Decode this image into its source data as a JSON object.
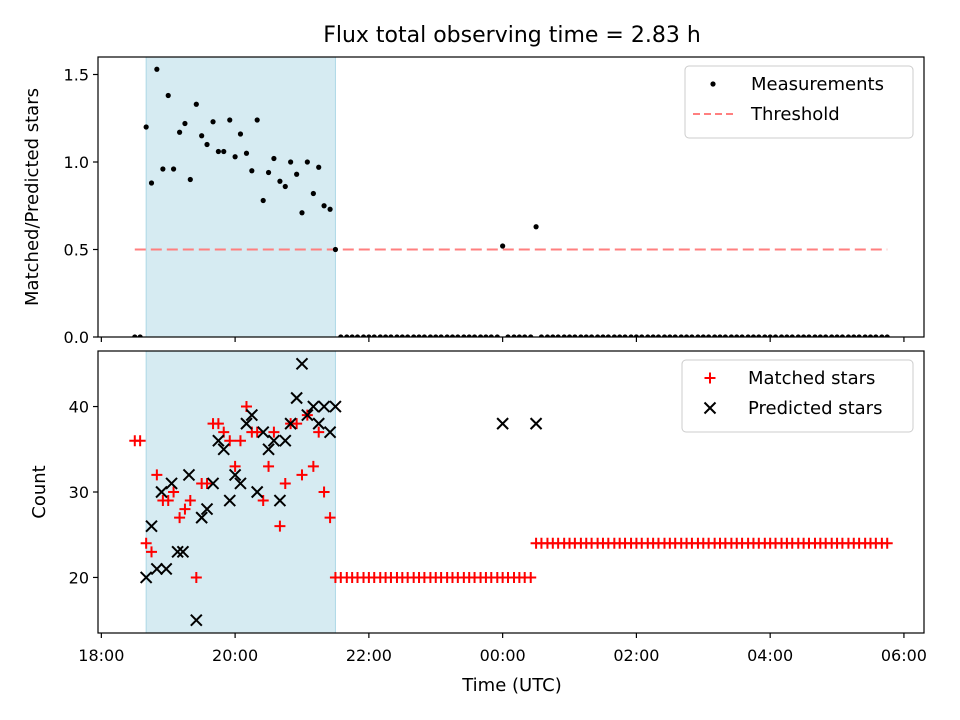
{
  "chart_data": {
    "title": "Flux total observing time = 2.83 h",
    "xlabel": "Time (UTC)",
    "x_unit": "hours since 18:00 UTC",
    "xlim": [
      -0.05,
      12.3
    ],
    "x_ticks": [
      {
        "value": 0,
        "label": "18:00"
      },
      {
        "value": 2,
        "label": "20:00"
      },
      {
        "value": 4,
        "label": "22:00"
      },
      {
        "value": 6,
        "label": "00:00"
      },
      {
        "value": 8,
        "label": "02:00"
      },
      {
        "value": 10,
        "label": "04:00"
      },
      {
        "value": 12,
        "label": "06:00"
      }
    ],
    "observing_window": {
      "start": 0.67,
      "end": 3.5,
      "color": "#add8e6"
    },
    "panels": [
      {
        "type": "scatter",
        "ylabel": "Matched/Predicted stars",
        "ylim": [
          0,
          1.6
        ],
        "y_ticks": [
          {
            "value": 0,
            "label": "0.0"
          },
          {
            "value": 0.5,
            "label": "0.5"
          },
          {
            "value": 1.0,
            "label": "1.0"
          },
          {
            "value": 1.5,
            "label": "1.5"
          }
        ],
        "threshold": {
          "name": "Threshold",
          "value": 0.5,
          "x_start": 0.5,
          "x_end": 11.75,
          "color": "#ff7f7f"
        },
        "legend_position": "upper right",
        "series": [
          {
            "name": "Measurements",
            "marker": "dot",
            "color": "#000000",
            "x": [
              0.5,
              0.58,
              0.67,
              0.75,
              0.83,
              0.92,
              1.0,
              1.08,
              1.17,
              1.25,
              1.33,
              1.42,
              1.5,
              1.58,
              1.67,
              1.75,
              1.83,
              1.92,
              2.0,
              2.08,
              2.17,
              2.25,
              2.33,
              2.42,
              2.5,
              2.58,
              2.67,
              2.75,
              2.83,
              2.92,
              3.0,
              3.08,
              3.17,
              3.25,
              3.33,
              3.42,
              3.5,
              3.58,
              3.67,
              3.75,
              3.83,
              3.92,
              4.0,
              4.08,
              4.17,
              4.25,
              4.33,
              4.42,
              4.5,
              4.58,
              4.67,
              4.75,
              4.83,
              4.92,
              5.0,
              5.08,
              5.17,
              5.25,
              5.33,
              5.42,
              5.5,
              5.58,
              5.67,
              5.75,
              5.83,
              5.92,
              6.0,
              6.08,
              6.17,
              6.25,
              6.33,
              6.42,
              6.5,
              6.58,
              6.67,
              6.75,
              6.83,
              6.92,
              7.0,
              7.08,
              7.17,
              7.25,
              7.33,
              7.42,
              7.5,
              7.58,
              7.67,
              7.75,
              7.83,
              7.92,
              8.0,
              8.08,
              8.17,
              8.25,
              8.33,
              8.42,
              8.5,
              8.58,
              8.67,
              8.75,
              8.83,
              8.92,
              9.0,
              9.08,
              9.17,
              9.25,
              9.33,
              9.42,
              9.5,
              9.58,
              9.67,
              9.75,
              9.83,
              9.92,
              10.0,
              10.08,
              10.17,
              10.25,
              10.33,
              10.42,
              10.5,
              10.58,
              10.67,
              10.75,
              10.83,
              10.92,
              11.0,
              11.08,
              11.17,
              11.25,
              11.33,
              11.42,
              11.5,
              11.58,
              11.67,
              11.75
            ],
            "y": [
              0,
              0,
              1.2,
              0.88,
              1.53,
              0.96,
              1.38,
              0.96,
              1.17,
              1.22,
              0.9,
              1.33,
              1.15,
              1.1,
              1.23,
              1.06,
              1.06,
              1.24,
              1.03,
              1.16,
              1.05,
              0.95,
              1.24,
              0.78,
              0.94,
              1.02,
              0.89,
              0.86,
              1.0,
              0.93,
              0.71,
              1.0,
              0.82,
              0.97,
              0.75,
              0.73,
              0.5,
              0,
              0,
              0,
              0,
              0,
              0,
              0,
              0,
              0,
              0,
              0,
              0,
              0,
              0,
              0,
              0,
              0,
              0,
              0,
              0,
              0,
              0,
              0,
              0,
              0,
              0,
              0,
              0,
              0,
              0.52,
              0,
              0,
              0,
              0,
              0,
              0.63,
              0,
              0,
              0,
              0,
              0,
              0,
              0,
              0,
              0,
              0,
              0,
              0,
              0,
              0,
              0,
              0,
              0,
              0,
              0,
              0,
              0,
              0,
              0,
              0,
              0,
              0,
              0,
              0,
              0,
              0,
              0,
              0,
              0,
              0,
              0,
              0,
              0,
              0,
              0,
              0,
              0,
              0,
              0,
              0,
              0,
              0,
              0,
              0,
              0,
              0,
              0,
              0,
              0,
              0,
              0,
              0,
              0,
              0,
              0,
              0,
              0,
              0,
              0
            ]
          }
        ]
      },
      {
        "type": "scatter",
        "ylabel": "Count",
        "ylim": [
          13.5,
          46.5
        ],
        "y_ticks": [
          {
            "value": 20,
            "label": "20"
          },
          {
            "value": 30,
            "label": "30"
          },
          {
            "value": 40,
            "label": "40"
          }
        ],
        "legend_position": "upper right",
        "series": [
          {
            "name": "Matched stars",
            "marker": "plus",
            "color": "#ff0000",
            "x": [
              0.5,
              0.58,
              0.67,
              0.75,
              0.83,
              0.92,
              1.0,
              1.08,
              1.17,
              1.25,
              1.33,
              1.42,
              1.5,
              1.58,
              1.67,
              1.75,
              1.83,
              1.92,
              2.0,
              2.08,
              2.17,
              2.25,
              2.33,
              2.42,
              2.5,
              2.58,
              2.67,
              2.75,
              2.83,
              2.92,
              3.0,
              3.08,
              3.17,
              3.25,
              3.33,
              3.42,
              3.5,
              3.58,
              3.67,
              3.75,
              3.83,
              3.92,
              4.0,
              4.08,
              4.17,
              4.25,
              4.33,
              4.42,
              4.5,
              4.58,
              4.67,
              4.75,
              4.83,
              4.92,
              5.0,
              5.08,
              5.17,
              5.25,
              5.33,
              5.42,
              5.5,
              5.58,
              5.67,
              5.75,
              5.83,
              5.92,
              6.0,
              6.08,
              6.17,
              6.25,
              6.33,
              6.42,
              6.5,
              6.58,
              6.67,
              6.75,
              6.83,
              6.92,
              7.0,
              7.08,
              7.17,
              7.25,
              7.33,
              7.42,
              7.5,
              7.58,
              7.67,
              7.75,
              7.83,
              7.92,
              8.0,
              8.08,
              8.17,
              8.25,
              8.33,
              8.42,
              8.5,
              8.58,
              8.67,
              8.75,
              8.83,
              8.92,
              9.0,
              9.08,
              9.17,
              9.25,
              9.33,
              9.42,
              9.5,
              9.58,
              9.67,
              9.75,
              9.83,
              9.92,
              10.0,
              10.08,
              10.17,
              10.25,
              10.33,
              10.42,
              10.5,
              10.58,
              10.67,
              10.75,
              10.83,
              10.92,
              11.0,
              11.08,
              11.17,
              11.25,
              11.33,
              11.42,
              11.5,
              11.58,
              11.67,
              11.75
            ],
            "y": [
              36,
              36,
              24,
              23,
              32,
              29,
              29,
              30,
              27,
              28,
              29,
              20,
              31,
              31,
              38,
              38,
              37,
              36,
              33,
              36,
              40,
              37,
              37,
              29,
              33,
              37,
              26,
              31,
              38,
              38,
              32,
              39,
              33,
              37,
              30,
              27,
              20,
              20,
              20,
              20,
              20,
              20,
              20,
              20,
              20,
              20,
              20,
              20,
              20,
              20,
              20,
              20,
              20,
              20,
              20,
              20,
              20,
              20,
              20,
              20,
              20,
              20,
              20,
              20,
              20,
              20,
              20,
              20,
              20,
              20,
              20,
              20,
              24,
              24,
              24,
              24,
              24,
              24,
              24,
              24,
              24,
              24,
              24,
              24,
              24,
              24,
              24,
              24,
              24,
              24,
              24,
              24,
              24,
              24,
              24,
              24,
              24,
              24,
              24,
              24,
              24,
              24,
              24,
              24,
              24,
              24,
              24,
              24,
              24,
              24,
              24,
              24,
              24,
              24,
              24,
              24,
              24,
              24,
              24,
              24,
              24,
              24,
              24,
              24,
              24,
              24,
              24,
              24,
              24,
              24,
              24,
              24,
              24,
              24,
              24,
              24
            ]
          },
          {
            "name": "Predicted stars",
            "marker": "x",
            "color": "#000000",
            "x": [
              0.67,
              0.75,
              0.83,
              0.9,
              0.97,
              1.05,
              1.14,
              1.22,
              1.31,
              1.42,
              1.5,
              1.58,
              1.67,
              1.75,
              1.83,
              1.92,
              2.0,
              2.08,
              2.17,
              2.25,
              2.33,
              2.42,
              2.5,
              2.58,
              2.67,
              2.75,
              2.83,
              2.92,
              3.0,
              3.08,
              3.17,
              3.25,
              3.33,
              3.42,
              3.5,
              6.0,
              6.5
            ],
            "y": [
              20,
              26,
              21,
              30,
              21,
              31,
              23,
              23,
              32,
              15,
              27,
              28,
              31,
              36,
              35,
              29,
              32,
              31,
              38,
              39,
              30,
              37,
              35,
              36,
              29,
              36,
              38,
              41,
              45,
              39,
              40,
              38,
              40,
              37,
              40,
              38,
              38
            ]
          }
        ]
      }
    ]
  }
}
